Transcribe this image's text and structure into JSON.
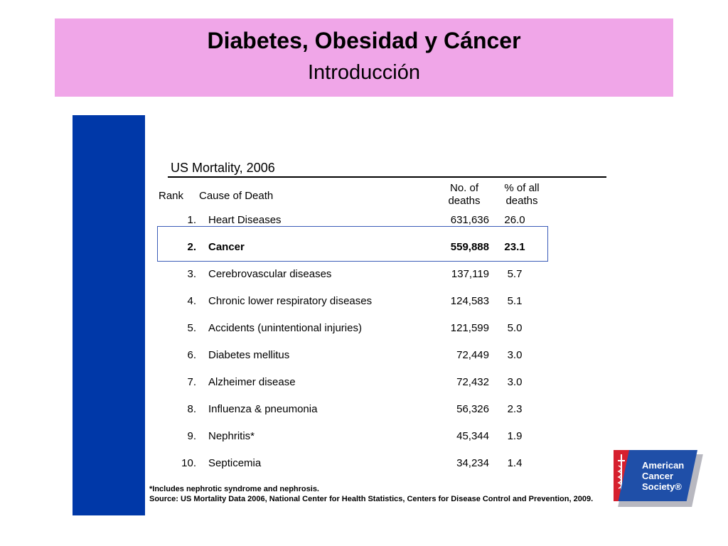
{
  "header": {
    "title": "Diabetes, Obesidad y Cáncer",
    "subtitle": "Introducción"
  },
  "table": {
    "title": "US Mortality, 2006",
    "headers": {
      "rank": "Rank",
      "cause": "Cause of Death",
      "deaths_line1": "No. of",
      "deaths_line2": "deaths",
      "pct_line1": "% of all",
      "pct_line2": "deaths"
    },
    "rows": [
      {
        "rank": "1.",
        "cause": "Heart Diseases",
        "deaths": "631,636",
        "pct": "26.0",
        "bold": false
      },
      {
        "rank": "2.",
        "cause": "Cancer",
        "deaths": "559,888",
        "pct": "23.1",
        "bold": true
      },
      {
        "rank": "3.",
        "cause": "Cerebrovascular diseases",
        "deaths": "137,119",
        "pct": "5.7",
        "bold": false
      },
      {
        "rank": "4.",
        "cause": "Chronic lower respiratory diseases",
        "deaths": "124,583",
        "pct": "5.1",
        "bold": false
      },
      {
        "rank": "5.",
        "cause": "Accidents (unintentional injuries)",
        "deaths": "121,599",
        "pct": "5.0",
        "bold": false
      },
      {
        "rank": "6.",
        "cause": "Diabetes mellitus",
        "deaths": "72,449",
        "pct": "3.0",
        "bold": false
      },
      {
        "rank": "7.",
        "cause": "Alzheimer disease",
        "deaths": "72,432",
        "pct": "3.0",
        "bold": false
      },
      {
        "rank": "8.",
        "cause": "Influenza & pneumonia",
        "deaths": "56,326",
        "pct": "2.3",
        "bold": false
      },
      {
        "rank": "9.",
        "cause": "Nephritis*",
        "deaths": "45,344",
        "pct": "1.9",
        "bold": false
      },
      {
        "rank": "10.",
        "cause": "Septicemia",
        "deaths": "34,234",
        "pct": "1.4",
        "bold": false
      }
    ]
  },
  "footnotes": {
    "note": "*Includes nephrotic syndrome and nephrosis.",
    "source": "Source: US Mortality Data 2006, National Center for Health Statistics, Centers for Disease Control and Prevention, 2009."
  },
  "logo": {
    "line1": "American",
    "line2": "Cancer",
    "line3": "Society®",
    "icon": "caduceus-sword-icon"
  },
  "colors": {
    "header_band": "#f0a6e8",
    "side_bar": "#0038a8",
    "highlight_border": "#3b5cb8",
    "logo_red": "#d6202e",
    "logo_blue": "#1f4fa8"
  }
}
